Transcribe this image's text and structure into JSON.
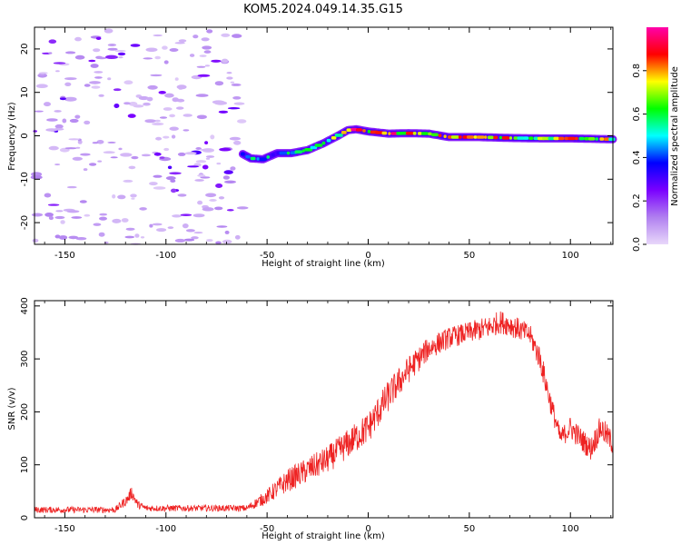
{
  "title": "KOM5.2024.049.14.35.G15",
  "chart_data": [
    {
      "type": "heatmap",
      "title": "",
      "xlabel": "Height of straight line (km)",
      "ylabel": "Frequency (Hz)",
      "xlim": [
        -165,
        121
      ],
      "ylim": [
        -25,
        25
      ],
      "xticks": [
        -150,
        -100,
        -50,
        0,
        50,
        100
      ],
      "yticks": [
        -20,
        -10,
        0,
        10,
        20
      ],
      "colorbar": {
        "label": "Normalized spectral amplitude",
        "range": [
          0,
          1
        ],
        "ticks": [
          0.0,
          0.2,
          0.4,
          0.6,
          0.8
        ],
        "colormap": [
          "#e8d8fa",
          "#b07ff0",
          "#7a00ff",
          "#0000ff",
          "#00ffff",
          "#00ff00",
          "#ffff00",
          "#ff0000",
          "#ff00aa"
        ]
      },
      "noise_region_x": [
        -165,
        -62
      ],
      "ridge": [
        {
          "x": -62,
          "y": -4.2,
          "a": 0.35
        },
        {
          "x": -58,
          "y": -5.2,
          "a": 0.45
        },
        {
          "x": -52,
          "y": -5.4,
          "a": 0.4
        },
        {
          "x": -45,
          "y": -4.0,
          "a": 0.45
        },
        {
          "x": -38,
          "y": -4.0,
          "a": 0.55
        },
        {
          "x": -30,
          "y": -3.3,
          "a": 0.5
        },
        {
          "x": -22,
          "y": -1.7,
          "a": 0.55
        },
        {
          "x": -15,
          "y": 0.0,
          "a": 0.65
        },
        {
          "x": -10,
          "y": 1.3,
          "a": 0.8
        },
        {
          "x": -6,
          "y": 1.5,
          "a": 0.9
        },
        {
          "x": 0,
          "y": 1.0,
          "a": 0.7
        },
        {
          "x": 10,
          "y": 0.5,
          "a": 0.85
        },
        {
          "x": 20,
          "y": 0.6,
          "a": 0.7
        },
        {
          "x": 30,
          "y": 0.5,
          "a": 0.8
        },
        {
          "x": 40,
          "y": -0.3,
          "a": 0.7
        },
        {
          "x": 55,
          "y": -0.3,
          "a": 0.88
        },
        {
          "x": 70,
          "y": -0.5,
          "a": 0.7
        },
        {
          "x": 85,
          "y": -0.6,
          "a": 0.65
        },
        {
          "x": 100,
          "y": -0.6,
          "a": 0.7
        },
        {
          "x": 121,
          "y": -0.8,
          "a": 0.65
        }
      ]
    },
    {
      "type": "line",
      "title": "",
      "xlabel": "Height of straight line (km)",
      "ylabel": "SNR (v/v)",
      "xlim": [
        -165,
        121
      ],
      "ylim": [
        0,
        410
      ],
      "xticks": [
        -150,
        -100,
        -50,
        0,
        50,
        100
      ],
      "yticks": [
        0,
        100,
        200,
        300,
        400
      ],
      "series": [
        {
          "color": "#ee2222",
          "trend_x": [
            -165,
            -125,
            -119,
            -117,
            -114,
            -110,
            -60,
            -50,
            -40,
            -20,
            0,
            10,
            20,
            30,
            40,
            50,
            60,
            65,
            70,
            80,
            85,
            90,
            95,
            100,
            105,
            110,
            115,
            121
          ],
          "trend_y": [
            15,
            15,
            35,
            48,
            25,
            18,
            18,
            40,
            70,
            110,
            170,
            230,
            280,
            320,
            340,
            350,
            360,
            370,
            365,
            345,
            300,
            220,
            150,
            170,
            150,
            130,
            170,
            140
          ],
          "noise_amp": [
            6,
            6,
            10,
            12,
            8,
            6,
            6,
            14,
            22,
            26,
            30,
            30,
            26,
            22,
            20,
            20,
            22,
            22,
            22,
            20,
            24,
            22,
            18,
            22,
            22,
            22,
            24,
            22
          ]
        }
      ]
    }
  ]
}
